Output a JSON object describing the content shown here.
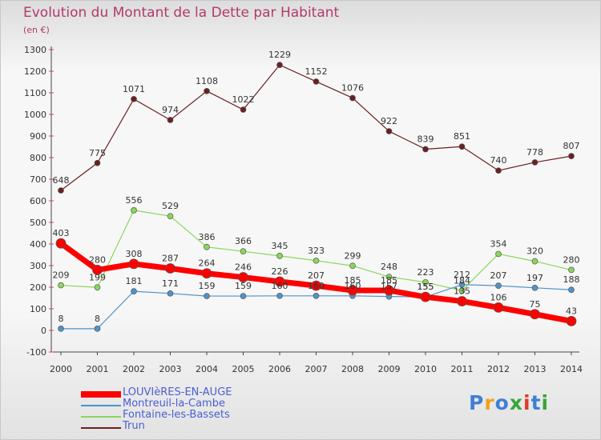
{
  "header": {
    "title": "Evolution du Montant de la Dette par Habitant",
    "unit": "(en €)"
  },
  "chart_data": {
    "type": "line",
    "title": "Evolution du Montant de la Dette par Habitant",
    "subtitle": "(en €)",
    "x": [
      "2000",
      "2001",
      "2002",
      "2003",
      "2004",
      "2005",
      "2006",
      "2007",
      "2008",
      "2009",
      "2010",
      "2011",
      "2012",
      "2013",
      "2014"
    ],
    "ylim": [
      -100,
      1300
    ],
    "yticks": [
      "-100",
      "0",
      "100",
      "200",
      "300",
      "400",
      "500",
      "600",
      "700",
      "800",
      "900",
      "1000",
      "1100",
      "1200",
      "1300"
    ],
    "grid": false,
    "legend": "bottom-left",
    "series": [
      {
        "name": "LOUVIèRES-EN-AUGE",
        "color": "#ff0000",
        "values": [
          403,
          280,
          308,
          287,
          264,
          246,
          226,
          207,
          185,
          185,
          155,
          135,
          106,
          75,
          43
        ],
        "labels": [
          "403",
          "280",
          "308",
          "287",
          "264",
          "246",
          "226",
          "207",
          "185",
          "185",
          "155",
          "135",
          "106",
          "75",
          "43"
        ]
      },
      {
        "name": "Montreuil-la-Cambe",
        "color": "#4f93c9",
        "values": [
          8,
          8,
          181,
          171,
          159,
          159,
          160,
          160,
          160,
          157,
          155,
          212,
          207,
          197,
          188
        ],
        "labels": [
          "8",
          "8",
          "181",
          "171",
          "159",
          "159",
          "160",
          "160",
          "160",
          "157",
          "155",
          "212",
          "207",
          "197",
          "188"
        ]
      },
      {
        "name": "Fontaine-les-Bassets",
        "color": "#8bd65a",
        "values": [
          209,
          199,
          556,
          529,
          386,
          366,
          345,
          323,
          299,
          248,
          223,
          184,
          354,
          320,
          280
        ],
        "labels": [
          "209",
          "199",
          "556",
          "529",
          "386",
          "366",
          "345",
          "323",
          "299",
          "248",
          "223",
          "184",
          "354",
          "320",
          "280"
        ]
      },
      {
        "name": "Trun",
        "color": "#6b1f22",
        "values": [
          648,
          775,
          1071,
          974,
          1108,
          1022,
          1229,
          1152,
          1076,
          922,
          839,
          851,
          740,
          778,
          807
        ],
        "labels": [
          "648",
          "775",
          "1071",
          "974",
          "1108",
          "1022",
          "1229",
          "1152",
          "1076",
          "922",
          "839",
          "851",
          "740",
          "778",
          "807"
        ]
      }
    ]
  },
  "branding": {
    "logo": "Proxiti",
    "logo_colors": [
      "#3f7fd6",
      "#f0a21c",
      "#3f7fd6",
      "#3aa537",
      "#e03b2a",
      "#3f7fd6",
      "#3aa537"
    ]
  }
}
